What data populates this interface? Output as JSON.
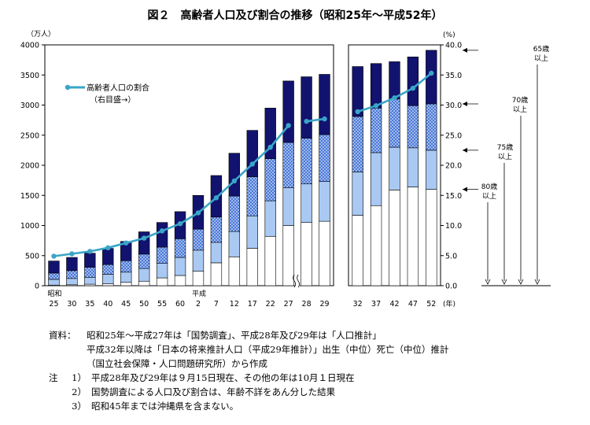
{
  "title": "図２　高齢者人口及び割合の推移（昭和25年～平成52年）",
  "chart_data": {
    "type": "bar",
    "stacked": true,
    "y_left_label": "（万人）",
    "y_left_ticks": [
      "0",
      "500",
      "1000",
      "1500",
      "2000",
      "2500",
      "3000",
      "3500",
      "4000"
    ],
    "y_left_range": [
      0,
      4000
    ],
    "y_right_label": "(%)",
    "y_right_ticks": [
      "0.0",
      "5.0",
      "10.0",
      "15.0",
      "20.0",
      "25.0",
      "30.0",
      "35.0",
      "40.0"
    ],
    "y_right_range": [
      0,
      40
    ],
    "era_labels": [
      {
        "text": "昭和",
        "category_index": 0
      },
      {
        "text": "平成",
        "category_index": 8
      }
    ],
    "x_unit": "(年)",
    "categories": [
      "25",
      "30",
      "35",
      "40",
      "45",
      "50",
      "55",
      "60",
      "2",
      "7",
      "12",
      "17",
      "22",
      "27",
      "28",
      "29",
      "32",
      "37",
      "42",
      "47",
      "52"
    ],
    "series": [
      {
        "key": "age80plus",
        "color": "#ffffff",
        "values": [
          10,
          15,
          25,
          35,
          55,
          75,
          130,
          170,
          240,
          380,
          480,
          620,
          820,
          1000,
          1050,
          1070,
          1170,
          1330,
          1590,
          1640,
          1600
        ]
      },
      {
        "key": "age75to79",
        "color": "#a9c9f3",
        "values": [
          95,
          105,
          115,
          155,
          170,
          210,
          240,
          300,
          350,
          340,
          420,
          540,
          590,
          630,
          640,
          660,
          720,
          880,
          710,
          650,
          650
        ]
      },
      {
        "key": "age70to74",
        "color": "#4a78d6",
        "pattern": "dots",
        "values": [
          105,
          130,
          165,
          160,
          190,
          240,
          270,
          310,
          350,
          420,
          590,
          650,
          700,
          750,
          760,
          780,
          920,
          740,
          800,
          700,
          770
        ]
      },
      {
        "key": "age65to69",
        "color": "#12136f",
        "values": [
          200,
          220,
          235,
          270,
          320,
          370,
          410,
          450,
          560,
          690,
          710,
          770,
          840,
          1020,
          1020,
          1000,
          830,
          740,
          620,
          810,
          890
        ]
      }
    ],
    "totals": [
      410,
      470,
      540,
      620,
      735,
      895,
      1050,
      1230,
      1500,
      1830,
      2200,
      2580,
      2950,
      3400,
      3470,
      3510,
      3640,
      3690,
      3720,
      3800,
      3910
    ],
    "ratio_series": {
      "name": "高齢者人口の割合",
      "name_sub": "（右目盛→）",
      "color": "#3aa5c8",
      "values": [
        4.9,
        5.3,
        5.7,
        6.3,
        7.1,
        7.9,
        9.1,
        10.3,
        12.1,
        14.6,
        17.4,
        20.2,
        23.0,
        26.6,
        27.3,
        27.7,
        28.9,
        29.9,
        31.2,
        32.8,
        35.3
      ]
    },
    "axis_break_between": [
      "27",
      "28"
    ],
    "right_annotations": [
      {
        "line1": "65歳",
        "line2": "以上",
        "top_value": 3910
      },
      {
        "line1": "70歳",
        "line2": "以上",
        "top_value": 3020
      },
      {
        "line1": "75歳",
        "line2": "以上",
        "top_value": 2250
      },
      {
        "line1": "80歳",
        "line2": "以上",
        "top_value": 1600
      }
    ]
  },
  "notes": {
    "source_label": "資料：",
    "source_lines": [
      "昭和25年～平成27年は「国勢調査」、平成28年及び29年は「人口推計」",
      "平成32年以降は「日本の将来推計人口（平成29年推計）」出生（中位）死亡（中位）推計",
      "（国立社会保障・人口問題研究所）から作成"
    ],
    "note_label": "注",
    "note_items": [
      {
        "num": "1）",
        "text": "平成28年及び29年は９月15日現在、その他の年は10月１日現在"
      },
      {
        "num": "2）",
        "text": "国勢調査による人口及び割合は、年齢不詳をあん分した結果"
      },
      {
        "num": "3）",
        "text": "昭和45年までは沖縄県を含まない。"
      }
    ]
  }
}
